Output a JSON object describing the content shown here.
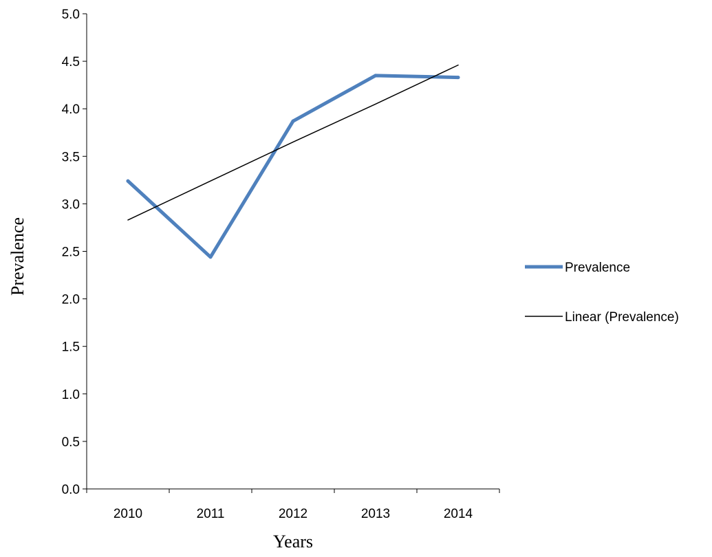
{
  "chart_data": {
    "type": "line",
    "categories": [
      "2010",
      "2011",
      "2012",
      "2013",
      "2014"
    ],
    "series": [
      {
        "name": "Prevalence",
        "values": [
          3.24,
          2.44,
          3.87,
          4.35,
          4.33
        ],
        "color": "#4F81BD"
      },
      {
        "name": "Linear (Prevalence)",
        "values": [
          2.83,
          3.24,
          3.65,
          4.05,
          4.46
        ],
        "color": "#000000",
        "trendline": true
      }
    ],
    "xlabel": "Years",
    "ylabel": "Prevalence",
    "ylim": [
      0,
      5.0
    ],
    "yticks": [
      "0.0",
      "0.5",
      "1.0",
      "1.5",
      "2.0",
      "2.5",
      "3.0",
      "3.5",
      "4.0",
      "4.5",
      "5.0"
    ],
    "grid": false,
    "legend_position": "right"
  }
}
